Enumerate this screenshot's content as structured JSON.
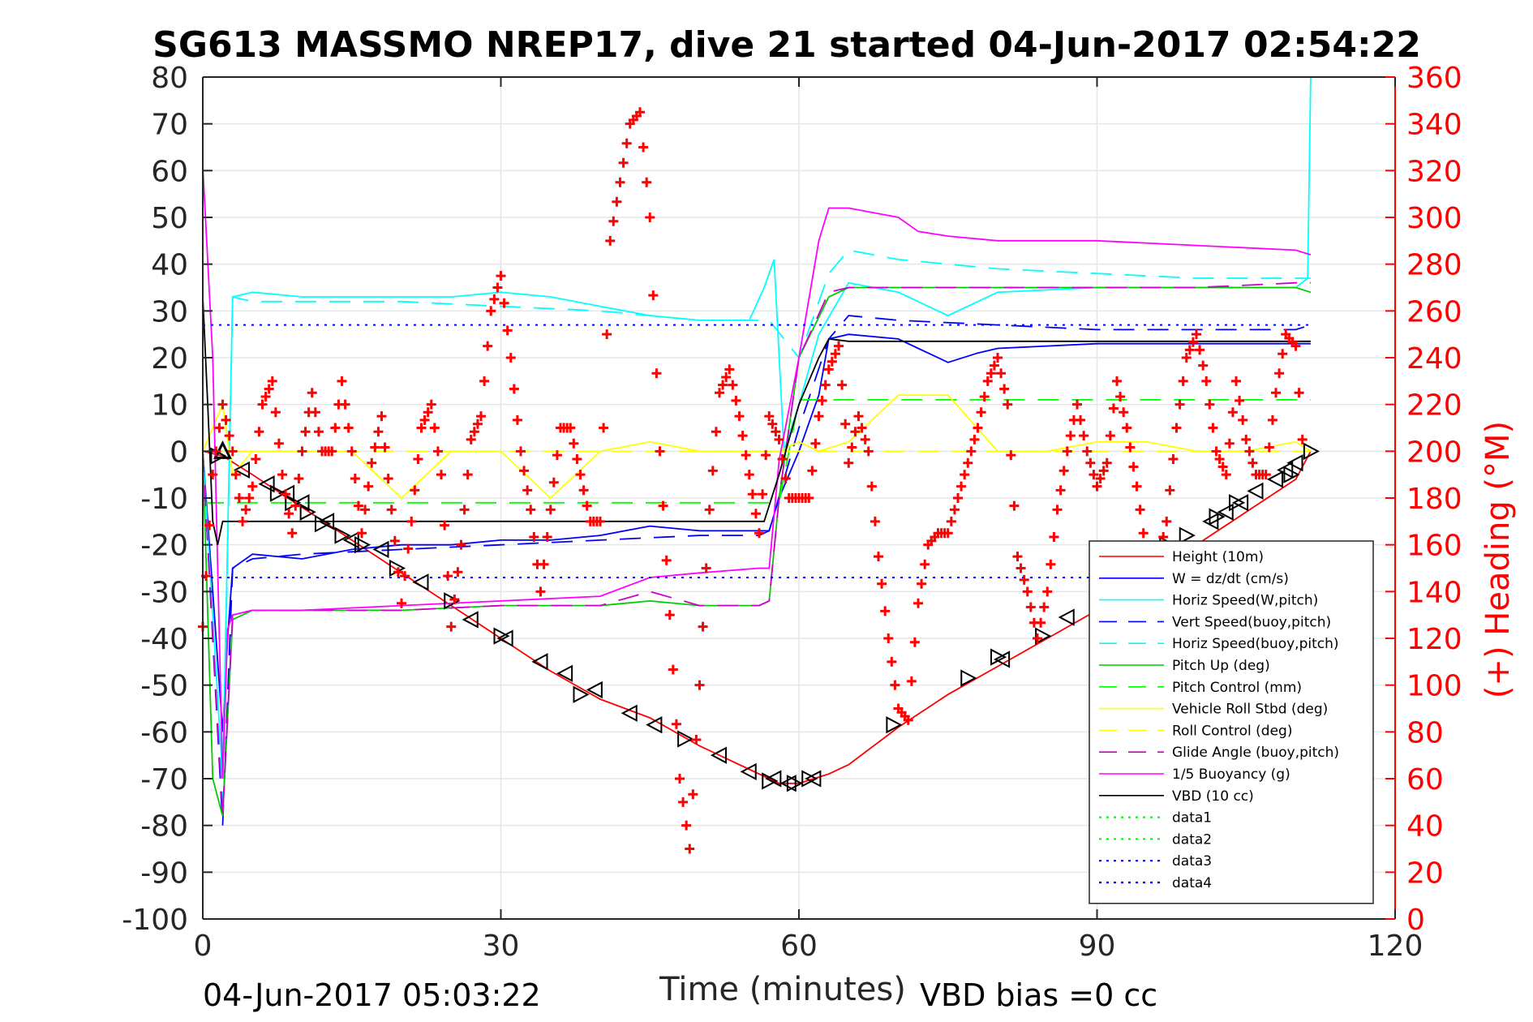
{
  "chart_data": {
    "type": "line",
    "title": "SG613 MASSMO NREP17, dive 21 started 04-Jun-2017 02:54:22",
    "xlabel": "Time (minutes)",
    "ylabel": "",
    "ylabel_right": "(+) Heading (°M)",
    "xlim": [
      0,
      120
    ],
    "ylim": [
      -100,
      80
    ],
    "ylim_right": [
      0,
      360
    ],
    "x_ticks": [
      "0",
      "30",
      "60",
      "90",
      "120"
    ],
    "y_ticks": [
      "80",
      "70",
      "60",
      "50",
      "40",
      "30",
      "20",
      "10",
      "0",
      "-10",
      "-20",
      "-30",
      "-40",
      "-50",
      "-60",
      "-70",
      "-80",
      "-90",
      "-100"
    ],
    "y_ticks_right": [
      "360",
      "340",
      "320",
      "300",
      "280",
      "260",
      "240",
      "220",
      "200",
      "180",
      "160",
      "140",
      "120",
      "100",
      "80",
      "60",
      "40",
      "20",
      "0"
    ],
    "grid": true,
    "legend_position": "bottom-right",
    "footer_left": "04-Jun-2017 05:03:22",
    "footer_right": "VBD bias =0 cc",
    "colors": {
      "height": "#ff0000",
      "w": "#0000ff",
      "horiz_speed": "#00ffff",
      "vert_speed_buoy": "#0000ff",
      "horiz_speed_buoy": "#00ffff",
      "pitch_up": "#00cc00",
      "pitch_control": "#00ff00",
      "roll": "#ffff00",
      "roll_control": "#ffff00",
      "glide_angle": "#cc00cc",
      "buoyancy": "#ff00ff",
      "vbd": "#000000",
      "heading": "#ff0000"
    },
    "legend": [
      {
        "key": "height",
        "label": "Height (10m)",
        "color": "#ff0000",
        "style": "solid"
      },
      {
        "key": "w",
        "label": "W = dz/dt (cm/s)",
        "color": "#0000ff",
        "style": "solid"
      },
      {
        "key": "horiz_speed",
        "label": "Horiz Speed(W,pitch)",
        "color": "#00ffff",
        "style": "solid"
      },
      {
        "key": "vert_speed_buoy",
        "label": "Vert Speed(buoy,pitch)",
        "color": "#0000ff",
        "style": "dashed"
      },
      {
        "key": "horiz_speed_buoy",
        "label": "Horiz Speed(buoy,pitch)",
        "color": "#00ffff",
        "style": "dashed"
      },
      {
        "key": "pitch_up",
        "label": "Pitch Up (deg)",
        "color": "#00cc00",
        "style": "solid"
      },
      {
        "key": "pitch_control",
        "label": "Pitch Control (mm)",
        "color": "#00ff00",
        "style": "dashed"
      },
      {
        "key": "roll",
        "label": "Vehicle Roll Stbd (deg)",
        "color": "#ffff00",
        "style": "solid"
      },
      {
        "key": "roll_control",
        "label": "Roll Control (deg)",
        "color": "#ffff00",
        "style": "dashed"
      },
      {
        "key": "glide_angle",
        "label": "Glide Angle (buoy,pitch)",
        "color": "#cc00cc",
        "style": "dashed"
      },
      {
        "key": "buoyancy",
        "label": "1/5 Buoyancy (g)",
        "color": "#ff00ff",
        "style": "solid"
      },
      {
        "key": "vbd",
        "label": "VBD (10 cc)",
        "color": "#000000",
        "style": "solid"
      },
      {
        "key": "data1",
        "label": "data1",
        "color": "#00ff00",
        "style": "dotted"
      },
      {
        "key": "data2",
        "label": "data2",
        "color": "#00ff00",
        "style": "dotted"
      },
      {
        "key": "data3",
        "label": "data3",
        "color": "#0000ff",
        "style": "dotted"
      },
      {
        "key": "data4",
        "label": "data4",
        "color": "#0000ff",
        "style": "dotted"
      }
    ],
    "series": [
      {
        "key": "height",
        "label": "Height (10m)",
        "x": [
          0,
          2,
          5,
          10,
          15,
          20,
          25,
          30,
          35,
          40,
          45,
          50,
          55,
          58,
          60,
          63,
          65,
          70,
          75,
          80,
          85,
          90,
          95,
          100,
          105,
          110,
          111.5
        ],
        "y": [
          0,
          -1,
          -5,
          -12,
          -19,
          -26,
          -33,
          -40,
          -47,
          -53,
          -57,
          -63,
          -68,
          -71,
          -71,
          -69,
          -67,
          -59,
          -52,
          -46,
          -40,
          -34,
          -27,
          -20,
          -13,
          -6,
          0
        ]
      },
      {
        "key": "w",
        "label": "W = dz/dt (cm/s)",
        "x": [
          0,
          1,
          2,
          2.5,
          3,
          5,
          10,
          15,
          20,
          25,
          30,
          35,
          40,
          45,
          50,
          55,
          57,
          58,
          60,
          62,
          63,
          65,
          70,
          72,
          75,
          78,
          80,
          90,
          100,
          110,
          111.5
        ],
        "y": [
          0,
          -30,
          -60,
          -40,
          -25,
          -22,
          -23,
          -21,
          -20,
          -20,
          -19,
          -19,
          -18,
          -16,
          -17,
          -17,
          -17,
          -10,
          0,
          12,
          24,
          25,
          24,
          22,
          19,
          21,
          22,
          23,
          23,
          23,
          23
        ]
      },
      {
        "key": "horiz_speed",
        "label": "Horiz Speed(W,pitch)",
        "x": [
          0,
          2,
          3,
          5,
          10,
          15,
          20,
          25,
          30,
          35,
          40,
          45,
          50,
          55,
          56.5,
          57.5,
          58.5,
          60,
          62,
          65,
          70,
          75,
          80,
          90,
          100,
          110,
          111.2,
          111.5
        ],
        "y": [
          0,
          -70,
          33,
          34,
          33,
          33,
          33,
          33,
          34,
          33,
          31,
          29,
          28,
          28,
          35,
          41,
          0,
          10,
          25,
          36,
          34,
          29,
          34,
          35,
          35,
          35,
          37,
          80
        ]
      },
      {
        "key": "vert_speed_buoy",
        "label": "Vert Speed(buoy,pitch)",
        "x": [
          0,
          2,
          3,
          5,
          10,
          20,
          30,
          40,
          50,
          56,
          57,
          60,
          63,
          65,
          70,
          80,
          90,
          100,
          110,
          111.5
        ],
        "y": [
          0,
          -80,
          -25,
          -23,
          -22,
          -21,
          -20,
          -19,
          -18,
          -18,
          -17,
          5,
          24,
          29,
          28,
          27,
          26,
          26,
          26,
          27
        ]
      },
      {
        "key": "horiz_speed_buoy",
        "label": "Horiz Speed(buoy,pitch)",
        "x": [
          0,
          2,
          3,
          5,
          10,
          20,
          30,
          40,
          50,
          56,
          57,
          60,
          63,
          65,
          70,
          80,
          90,
          100,
          110,
          111.5
        ],
        "y": [
          0,
          -75,
          33,
          32,
          32,
          32,
          31,
          30,
          28,
          28,
          28,
          20,
          38,
          43,
          41,
          39,
          38,
          37,
          37,
          37
        ]
      },
      {
        "key": "pitch_up",
        "label": "Pitch Up (deg)",
        "x": [
          0,
          1,
          2,
          3,
          5,
          10,
          20,
          30,
          40,
          45,
          50,
          56,
          57,
          58,
          60,
          63,
          65,
          70,
          80,
          90,
          100,
          110,
          111.5
        ],
        "y": [
          0,
          -70,
          -78,
          -36,
          -34,
          -34,
          -34,
          -33,
          -33,
          -32,
          -33,
          -33,
          -32,
          -10,
          20,
          33,
          35,
          35,
          35,
          35,
          35,
          35,
          34
        ]
      },
      {
        "key": "pitch_control",
        "label": "Pitch Control (mm)",
        "x": [
          0,
          2,
          58,
          60,
          111.5
        ],
        "y": [
          -11,
          -11,
          -11,
          11,
          11
        ]
      },
      {
        "key": "roll",
        "label": "Vehicle Roll Stbd (deg)",
        "x": [
          0,
          2,
          3,
          5,
          10,
          15,
          20,
          25,
          30,
          35,
          40,
          45,
          50,
          55,
          58,
          60,
          62,
          65,
          70,
          75,
          80,
          85,
          90,
          95,
          100,
          105,
          110,
          111.5
        ],
        "y": [
          0,
          10,
          -5,
          0,
          0,
          0,
          -10,
          0,
          0,
          -10,
          0,
          2,
          0,
          0,
          0,
          2,
          0,
          2,
          12,
          12,
          0,
          0,
          2,
          2,
          0,
          0,
          2,
          0
        ]
      },
      {
        "key": "roll_control",
        "label": "Roll Control (deg)",
        "x": [
          0,
          2,
          10,
          20,
          30,
          40,
          45,
          50,
          60,
          70,
          80,
          90,
          100,
          110,
          111.5
        ],
        "y": [
          0,
          0,
          0,
          0,
          0,
          0,
          0,
          0,
          0,
          0,
          0,
          0,
          0,
          0,
          0
        ]
      },
      {
        "key": "glide_angle",
        "label": "Glide Angle (buoy,pitch)",
        "x": [
          0,
          2,
          3,
          5,
          10,
          20,
          30,
          40,
          45,
          50,
          56,
          57,
          58,
          60,
          63,
          65,
          70,
          80,
          90,
          100,
          110,
          111.5
        ],
        "y": [
          0,
          -78,
          -35,
          -34,
          -34,
          -34,
          -33,
          -33,
          -30,
          -33,
          -33,
          -32,
          -10,
          20,
          34,
          35,
          35,
          35,
          35,
          35,
          36,
          36
        ]
      },
      {
        "key": "buoyancy",
        "label": "1/5 Buoyancy (g)",
        "x": [
          0,
          1,
          2,
          2.5,
          3,
          5,
          10,
          20,
          30,
          40,
          45,
          50,
          56,
          57,
          58,
          60,
          62,
          63,
          65,
          70,
          72,
          75,
          80,
          90,
          100,
          110,
          111.5
        ],
        "y": [
          61,
          20,
          -70,
          -38,
          -35,
          -34,
          -34,
          -33,
          -32,
          -31,
          -27,
          -26,
          -25,
          -25,
          -2,
          20,
          45,
          52,
          52,
          50,
          47,
          46,
          45,
          45,
          44,
          43,
          42
        ]
      },
      {
        "key": "vbd",
        "label": "VBD (10 cc)",
        "x": [
          0,
          0.5,
          1,
          1.5,
          2,
          56.5,
          58,
          60,
          62,
          63,
          65,
          111.5
        ],
        "y": [
          33,
          10,
          -15,
          -20,
          -15,
          -15,
          -5,
          10,
          20,
          24,
          23.5,
          23.5
        ]
      },
      {
        "key": "data3",
        "label": "data3",
        "x": [
          0,
          111.5
        ],
        "y": [
          27,
          27
        ]
      },
      {
        "key": "data4",
        "label": "data4",
        "x": [
          0,
          111.5
        ],
        "y": [
          -27,
          -27
        ]
      }
    ],
    "heading": {
      "label": "(+) Heading (°M)",
      "axis": "right",
      "x": [
        0,
        1,
        2,
        3,
        4,
        5,
        6,
        7,
        8,
        9,
        10,
        11,
        12,
        13,
        14,
        15,
        16,
        17,
        18,
        19,
        20,
        21,
        22,
        23,
        24,
        25,
        26,
        27,
        28,
        29,
        30,
        31,
        32,
        33,
        34,
        35,
        36,
        37,
        38,
        39,
        40,
        41,
        42,
        43,
        44,
        45,
        46,
        47,
        48,
        49,
        50,
        51,
        52,
        53,
        54,
        55,
        56,
        57,
        58,
        59,
        60,
        61,
        62,
        63,
        64,
        65,
        66,
        67,
        68,
        69,
        70,
        71,
        72,
        73,
        74,
        75,
        76,
        77,
        78,
        79,
        80,
        81,
        82,
        83,
        84,
        85,
        86,
        87,
        88,
        89,
        90,
        91,
        92,
        93,
        94,
        95,
        96,
        97,
        98,
        99,
        100,
        101,
        102,
        103,
        104,
        105,
        106,
        107,
        108,
        109,
        110,
        111
      ],
      "y": [
        125,
        190,
        220,
        200,
        170,
        185,
        220,
        230,
        190,
        165,
        200,
        225,
        200,
        200,
        230,
        200,
        165,
        195,
        215,
        175,
        135,
        170,
        210,
        220,
        190,
        125,
        160,
        205,
        215,
        260,
        275,
        240,
        200,
        175,
        140,
        175,
        210,
        210,
        190,
        170,
        170,
        290,
        315,
        340,
        345,
        300,
        200,
        130,
        60,
        30,
        100,
        175,
        225,
        235,
        215,
        190,
        165,
        215,
        205,
        180,
        180,
        180,
        215,
        235,
        245,
        195,
        215,
        200,
        155,
        120,
        90,
        85,
        135,
        160,
        165,
        165,
        180,
        195,
        210,
        230,
        240,
        220,
        155,
        140,
        120,
        140,
        175,
        200,
        220,
        200,
        185,
        195,
        230,
        210,
        185,
        155,
        150,
        170,
        210,
        240,
        250,
        230,
        200,
        190,
        230,
        205,
        190,
        190,
        225,
        250,
        245,
        185
      ]
    },
    "markers": {
      "left_triangles_x": [
        4,
        6.5,
        8.5,
        10,
        12.5,
        15,
        18,
        22,
        27,
        30.5,
        34,
        36.5,
        39.5,
        43,
        45.5,
        52,
        55,
        57.5,
        59,
        61.5,
        80.5,
        87,
        93,
        96,
        101.5,
        103,
        104.5,
        106,
        108,
        109,
        110
      ],
      "left_triangles_y": [
        -4,
        -7,
        -9,
        -11,
        -15,
        -19,
        -21,
        -28,
        -36,
        -40,
        -45,
        -47.5,
        -51,
        -56,
        -58.5,
        -65,
        -68.5,
        -70,
        -71,
        -70,
        -44.5,
        -35.5,
        -27,
        -22,
        -15,
        -13,
        -11,
        -8.5,
        -6,
        -4,
        -2.5
      ],
      "right_triangles_x": [
        1.5,
        7.5,
        9,
        10.5,
        12,
        14,
        16,
        19.5,
        25,
        30,
        38,
        48.5,
        57,
        59.5,
        61,
        69.5,
        77,
        80,
        84.5,
        97,
        99,
        102,
        104,
        109.5,
        111.5
      ],
      "right_triangles_y": [
        -1,
        -9,
        -11,
        -13,
        -15.5,
        -18,
        -20,
        -25,
        -32,
        -39.5,
        -52,
        -61.5,
        -70.5,
        -71,
        -70,
        -58.5,
        -48.5,
        -44,
        -39.5,
        -20,
        -18,
        -14,
        -11,
        -5,
        0
      ]
    }
  }
}
